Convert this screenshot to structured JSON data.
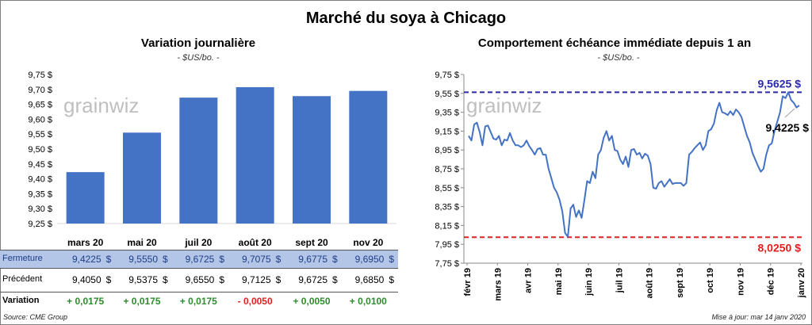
{
  "title": "Marché du soya à Chicago",
  "watermark": "grainwiz",
  "left": {
    "title": "Variation  journalière",
    "unit": "- $US/bo. -",
    "yticks": [
      "9,75 $",
      "9,70 $",
      "9,65 $",
      "9,60 $",
      "9,55 $",
      "9,50 $",
      "9,45 $",
      "9,40 $",
      "9,35 $",
      "9,30 $",
      "9,25 $"
    ],
    "months": [
      "mars 20",
      "mai 20",
      "juil 20",
      "août 20",
      "sept 20",
      "nov 20"
    ],
    "table": {
      "fermeture_label": "Fermeture",
      "precedent_label": "Précédent",
      "variation_label": "Variation",
      "currency": "$",
      "fermeture": [
        "9,4225",
        "9,5550",
        "9,6725",
        "9,7075",
        "9,6775",
        "9,6950"
      ],
      "precedent": [
        "9,4050",
        "9,5375",
        "9,6550",
        "9,7125",
        "9,6725",
        "9,6850"
      ],
      "variation": [
        "+ 0,0175",
        "+ 0,0175",
        "+ 0,0175",
        "- 0,0050",
        "+ 0,0050",
        "+ 0,0100"
      ]
    },
    "colors": {
      "bar": "#4472c4",
      "positive": "#2e8b2e",
      "negative": "#e02020"
    }
  },
  "right": {
    "title": "Comportement  échéance immédiate depuis 1 an",
    "unit": "- $US/bo. -",
    "yticks": [
      "9,75 $",
      "9,55 $",
      "9,35 $",
      "9,15 $",
      "8,95 $",
      "8,75 $",
      "8,55 $",
      "8,35 $",
      "8,15 $",
      "7,95 $",
      "7,75 $"
    ],
    "xticks": [
      "févr 19",
      "mars 19",
      "avr 19",
      "mai 19",
      "juin 19",
      "juil 19",
      "août 19",
      "sept 19",
      "oct 19",
      "nov 19",
      "déc 19",
      "janv 20"
    ],
    "high_label": "9,5625  $",
    "low_label": "8,0250  $",
    "last_label": "9,4225 $",
    "colors": {
      "line": "#4472c4",
      "high": "#2a2aa8",
      "low": "#e02020"
    }
  },
  "source": "Source: CME Group",
  "update": "Mise à jour: mar 14 janv 2020",
  "chart_data": [
    {
      "type": "bar",
      "title": "Variation  journalière",
      "ylabel": "- $US/bo. -",
      "categories": [
        "mars 20",
        "mai 20",
        "juil 20",
        "août 20",
        "sept 20",
        "nov 20"
      ],
      "values": [
        9.4225,
        9.555,
        9.6725,
        9.7075,
        9.6775,
        9.695
      ],
      "ylim": [
        9.25,
        9.75
      ]
    },
    {
      "type": "line",
      "title": "Comportement  échéance immédiate depuis 1 an",
      "ylabel": "- $US/bo. -",
      "ylim": [
        7.75,
        9.75
      ],
      "high": 9.5625,
      "low": 8.025,
      "last": 9.4225,
      "series": [
        {
          "values": [
            9.1,
            9.05,
            9.22,
            9.24,
            9.14,
            9.0,
            9.2,
            9.21,
            9.14,
            9.07,
            9.06,
            9.1,
            9.0,
            9.06,
            9.05,
            9.13,
            9.05,
            9.0,
            9.0,
            8.98,
            9.0,
            9.05,
            8.99,
            8.95,
            8.9,
            8.96,
            8.97,
            8.9,
            8.9,
            8.75,
            8.65,
            8.55,
            8.5,
            8.42,
            8.3,
            8.07,
            8.03,
            8.33,
            8.37,
            8.24,
            8.31,
            8.23,
            8.42,
            8.62,
            8.6,
            8.72,
            8.65,
            8.9,
            8.95,
            9.08,
            9.15,
            9.05,
            9.1,
            8.95,
            8.94,
            8.85,
            8.8,
            8.88,
            8.77,
            8.95,
            8.96,
            8.9,
            8.92,
            8.86,
            8.91,
            8.89,
            8.8,
            8.55,
            8.54,
            8.6,
            8.62,
            8.56,
            8.6,
            8.64,
            8.59,
            8.6,
            8.6,
            8.6,
            8.57,
            8.6,
            8.9,
            8.93,
            8.97,
            9.0,
            9.03,
            8.95,
            9.0,
            9.15,
            9.17,
            9.23,
            9.37,
            9.45,
            9.35,
            9.34,
            9.32,
            9.36,
            9.32,
            9.38,
            9.35,
            9.3,
            9.2,
            9.1,
            9.03,
            8.92,
            8.85,
            8.78,
            8.72,
            8.75,
            8.9,
            9.0,
            9.02,
            9.15,
            9.25,
            9.35,
            9.52,
            9.5,
            9.5625,
            9.48,
            9.45,
            9.4,
            9.4225
          ]
        }
      ]
    }
  ]
}
